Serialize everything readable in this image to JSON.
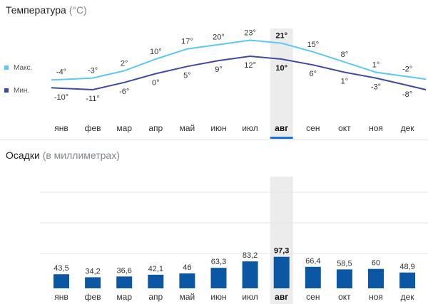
{
  "temperature": {
    "title": "Температура",
    "unit": "(°C)",
    "legend": {
      "max": "Макс.",
      "min": "Мин."
    },
    "max_labels": [
      "-4°",
      "-3°",
      "2°",
      "10°",
      "17°",
      "20°",
      "23°",
      "21°",
      "15°",
      "8°",
      "1°",
      "-2°"
    ],
    "min_labels": [
      "-10°",
      "-11°",
      "-6°",
      "0°",
      "5°",
      "9°",
      "12°",
      "10°",
      "6°",
      "1°",
      "-3°",
      "-8°"
    ]
  },
  "precipitation": {
    "title": "Осадки",
    "unit": "(в миллиметрах)",
    "labels": [
      "43,5",
      "34,2",
      "36,6",
      "42,1",
      "46",
      "63,3",
      "83,2",
      "97,3",
      "66,4",
      "58,5",
      "60",
      "48,9"
    ]
  },
  "months": [
    "янв",
    "фев",
    "мар",
    "апр",
    "май",
    "июн",
    "июл",
    "авг",
    "сен",
    "окт",
    "ноя",
    "дек"
  ],
  "selected_month_index": 7,
  "colors": {
    "max_line": "#5bc8f5",
    "min_line": "#3f4aa3",
    "bar": "#0b57a4",
    "highlight": "#ececec",
    "selected_underline": "#1a73e8"
  },
  "chart_data": [
    {
      "type": "line",
      "title": "Температура",
      "categories": [
        "янв",
        "фев",
        "мар",
        "апр",
        "май",
        "июн",
        "июл",
        "авг",
        "сен",
        "окт",
        "ноя",
        "дек"
      ],
      "series": [
        {
          "name": "Макс.",
          "values": [
            -4,
            -3,
            2,
            10,
            17,
            20,
            23,
            21,
            15,
            8,
            1,
            -2
          ]
        },
        {
          "name": "Мин.",
          "values": [
            -10,
            -11,
            -6,
            0,
            5,
            9,
            12,
            10,
            6,
            1,
            -3,
            -8
          ]
        }
      ],
      "ylabel": "°C",
      "grid": false,
      "legend": "left"
    },
    {
      "type": "bar",
      "title": "Осадки",
      "categories": [
        "янв",
        "фев",
        "мар",
        "апр",
        "май",
        "июн",
        "июл",
        "авг",
        "сен",
        "окт",
        "ноя",
        "дек"
      ],
      "values": [
        43.5,
        34.2,
        36.6,
        42.1,
        46,
        63.3,
        83.2,
        97.3,
        66.4,
        58.5,
        60,
        48.9
      ],
      "ylabel": "мм",
      "ylim": [
        0,
        350
      ],
      "grid": true
    }
  ]
}
